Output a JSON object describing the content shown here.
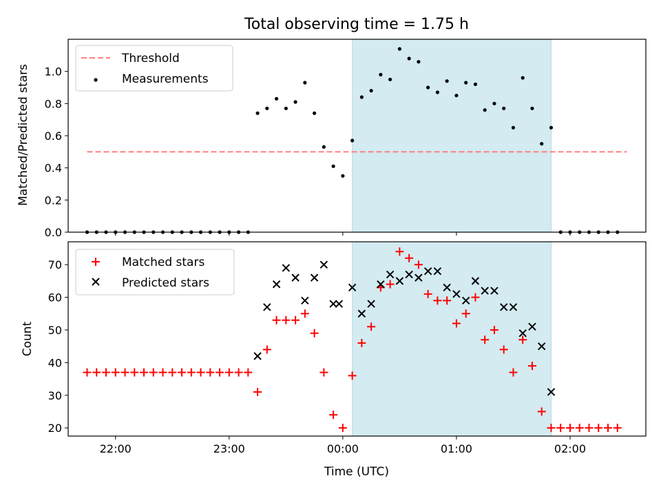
{
  "chart_data": [
    {
      "type": "scatter",
      "title": "Total observing time = 1.75 h",
      "ylabel": "Matched/Predicted stars",
      "xlabel": "",
      "ylim": [
        0,
        1.2
      ],
      "yticks": [
        "0.0",
        "0.2",
        "0.4",
        "0.6",
        "0.8",
        "1.0"
      ],
      "xlim": [
        "21:35",
        "02:40"
      ],
      "shaded_interval": [
        "00:05",
        "01:50"
      ],
      "shade_color": "#d3ebf1",
      "threshold": {
        "name": "Threshold",
        "value": 0.5,
        "x": [
          "21:45",
          "02:30"
        ],
        "color": "#ff7f7f"
      },
      "series": [
        {
          "name": "Measurements",
          "color": "#000000",
          "x": [
            "21:45",
            "21:50",
            "21:55",
            "22:00",
            "22:05",
            "22:10",
            "22:15",
            "22:20",
            "22:25",
            "22:30",
            "22:35",
            "22:40",
            "22:45",
            "22:50",
            "22:55",
            "23:00",
            "23:05",
            "23:10",
            "23:15",
            "23:20",
            "23:25",
            "23:30",
            "23:35",
            "23:40",
            "23:45",
            "23:50",
            "23:55",
            "00:00",
            "00:05",
            "00:10",
            "00:15",
            "00:20",
            "00:25",
            "00:30",
            "00:35",
            "00:40",
            "00:45",
            "00:50",
            "00:55",
            "01:00",
            "01:05",
            "01:10",
            "01:15",
            "01:20",
            "01:25",
            "01:30",
            "01:35",
            "01:40",
            "01:45",
            "01:50",
            "01:55",
            "02:00",
            "02:05",
            "02:10",
            "02:15",
            "02:20",
            "02:25"
          ],
          "y": [
            0,
            0,
            0,
            0,
            0,
            0,
            0,
            0,
            0,
            0,
            0,
            0,
            0,
            0,
            0,
            0,
            0,
            0,
            0.74,
            0.77,
            0.83,
            0.77,
            0.81,
            0.93,
            0.74,
            0.53,
            0.41,
            0.35,
            0.57,
            0.84,
            0.88,
            0.98,
            0.95,
            1.14,
            1.08,
            1.06,
            0.9,
            0.87,
            0.94,
            0.85,
            0.93,
            0.92,
            0.76,
            0.8,
            0.77,
            0.65,
            0.96,
            0.77,
            0.55,
            0.65,
            0,
            0,
            0,
            0,
            0,
            0,
            0
          ]
        }
      ]
    },
    {
      "type": "scatter",
      "title": "",
      "ylabel": "Count",
      "xlabel": "Time (UTC)",
      "ylim": [
        17.5,
        77
      ],
      "yticks": [
        "20",
        "30",
        "40",
        "50",
        "60",
        "70"
      ],
      "xticks": [
        "22:00",
        "23:00",
        "00:00",
        "01:00",
        "02:00"
      ],
      "xlim": [
        "21:35",
        "02:40"
      ],
      "shaded_interval": [
        "00:05",
        "01:50"
      ],
      "shade_color": "#d3ebf1",
      "series": [
        {
          "name": "Matched stars",
          "marker": "+",
          "color": "#ff0000",
          "x": [
            "21:45",
            "21:50",
            "21:55",
            "22:00",
            "22:05",
            "22:10",
            "22:15",
            "22:20",
            "22:25",
            "22:30",
            "22:35",
            "22:40",
            "22:45",
            "22:50",
            "22:55",
            "23:00",
            "23:05",
            "23:10",
            "23:15",
            "23:20",
            "23:25",
            "23:30",
            "23:35",
            "23:40",
            "23:45",
            "23:50",
            "23:55",
            "00:00",
            "00:05",
            "00:10",
            "00:15",
            "00:20",
            "00:25",
            "00:30",
            "00:35",
            "00:40",
            "00:45",
            "00:50",
            "00:55",
            "01:00",
            "01:05",
            "01:10",
            "01:15",
            "01:20",
            "01:25",
            "01:30",
            "01:35",
            "01:40",
            "01:45",
            "01:50",
            "01:55",
            "02:00",
            "02:05",
            "02:10",
            "02:15",
            "02:20",
            "02:25"
          ],
          "y": [
            37,
            37,
            37,
            37,
            37,
            37,
            37,
            37,
            37,
            37,
            37,
            37,
            37,
            37,
            37,
            37,
            37,
            37,
            31,
            44,
            53,
            53,
            53,
            55,
            49,
            37,
            24,
            20,
            36,
            46,
            51,
            63,
            64,
            74,
            72,
            70,
            61,
            59,
            59,
            52,
            55,
            60,
            47,
            50,
            44,
            37,
            47,
            39,
            25,
            20,
            20,
            20,
            20,
            20,
            20,
            20,
            20
          ]
        },
        {
          "name": "Predicted stars",
          "marker": "x",
          "color": "#000000",
          "x": [
            "23:15",
            "23:20",
            "23:25",
            "23:30",
            "23:35",
            "23:40",
            "23:45",
            "23:50",
            "23:55",
            "23:58",
            "00:05",
            "00:10",
            "00:15",
            "00:20",
            "00:25",
            "00:30",
            "00:35",
            "00:40",
            "00:45",
            "00:50",
            "00:55",
            "01:00",
            "01:05",
            "01:10",
            "01:15",
            "01:20",
            "01:25",
            "01:30",
            "01:35",
            "01:40",
            "01:45",
            "01:50"
          ],
          "y": [
            42,
            57,
            64,
            69,
            66,
            59,
            66,
            70,
            58,
            58,
            63,
            55,
            58,
            64,
            67,
            65,
            67,
            66,
            68,
            68,
            63,
            61,
            59,
            65,
            62,
            62,
            57,
            57,
            49,
            51,
            45,
            31
          ]
        }
      ]
    }
  ]
}
